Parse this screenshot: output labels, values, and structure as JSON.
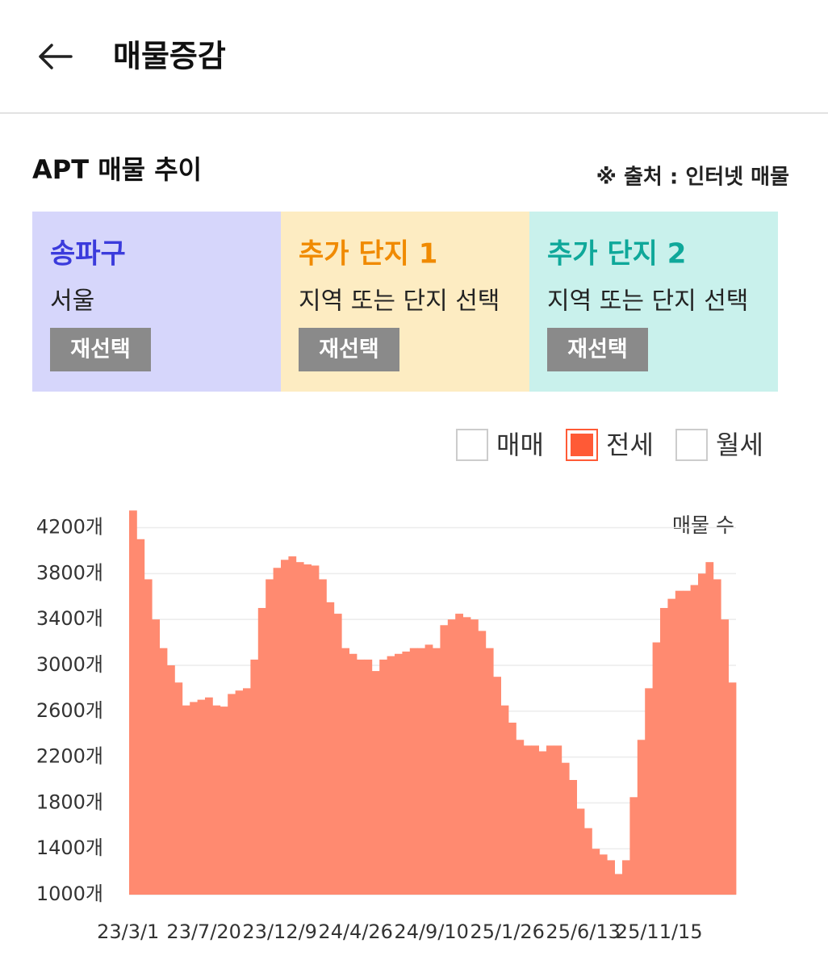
{
  "header": {
    "title": "매물증감"
  },
  "section": {
    "title": "APT 매물 추이",
    "source": "※ 출처 : 인터넷 매물"
  },
  "cards": [
    {
      "title": "송파구",
      "subtitle": "서울",
      "button": "재선택",
      "color": "#d6d6fb",
      "title_color": "#3b3bdc"
    },
    {
      "title": "추가 단지 1",
      "subtitle": "지역 또는 단지 선택",
      "button": "재선택",
      "color": "#fdecc2",
      "title_color": "#f08a00"
    },
    {
      "title": "추가 단지 2",
      "subtitle": "지역 또는 단지 선택",
      "button": "재선택",
      "color": "#c9f1ec",
      "title_color": "#0fa89a"
    }
  ],
  "legend": [
    {
      "label": "매매",
      "checked": false
    },
    {
      "label": "전세",
      "checked": true
    },
    {
      "label": "월세",
      "checked": false
    }
  ],
  "chart_data": {
    "type": "bar",
    "y_label": "매물 수",
    "categories": [
      "23/3/1",
      null,
      null,
      null,
      null,
      null,
      null,
      null,
      null,
      null,
      "23/7/20",
      null,
      null,
      null,
      null,
      null,
      null,
      null,
      null,
      null,
      "23/12/9",
      null,
      null,
      null,
      null,
      null,
      null,
      null,
      null,
      null,
      "24/4/26",
      null,
      null,
      null,
      null,
      null,
      null,
      null,
      null,
      null,
      "24/9/10",
      null,
      null,
      null,
      null,
      null,
      null,
      null,
      null,
      null,
      "25/1/26",
      null,
      null,
      null,
      null,
      null,
      null,
      null,
      null,
      null,
      "25/6/13",
      null,
      null,
      null,
      null,
      null,
      null,
      null,
      null,
      null,
      "25/11/15",
      null,
      null,
      null,
      null,
      null,
      null,
      null,
      null,
      null
    ],
    "series": [
      {
        "color": "#ff8a70",
        "values": [
          4350,
          4100,
          3750,
          3400,
          3150,
          3000,
          2850,
          2650,
          2680,
          2700,
          2720,
          2650,
          2640,
          2750,
          2780,
          2800,
          3050,
          3500,
          3750,
          3850,
          3920,
          3950,
          3900,
          3880,
          3870,
          3750,
          3550,
          3450,
          3150,
          3100,
          3050,
          3050,
          2950,
          3050,
          3080,
          3100,
          3120,
          3150,
          3150,
          3180,
          3150,
          3350,
          3400,
          3450,
          3420,
          3400,
          3300,
          3150,
          2900,
          2650,
          2500,
          2350,
          2300,
          2300,
          2250,
          2300,
          2300,
          2150,
          2000,
          1750,
          1580,
          1400,
          1350,
          1300,
          1180,
          1300,
          1850,
          2350,
          2800,
          3200,
          3500,
          3580,
          3650,
          3650,
          3700,
          3800,
          3900,
          3750,
          3400,
          2850
        ]
      }
    ],
    "ylim": [
      1000,
      4380
    ],
    "yticks": [
      {
        "value": 1000,
        "label": "1000개"
      },
      {
        "value": 1400,
        "label": "1400개"
      },
      {
        "value": 1800,
        "label": "1800개"
      },
      {
        "value": 2200,
        "label": "2200개"
      },
      {
        "value": 2600,
        "label": "2600개"
      },
      {
        "value": 3000,
        "label": "3000개"
      },
      {
        "value": 3400,
        "label": "3400개"
      },
      {
        "value": 3800,
        "label": "3800개"
      },
      {
        "value": 4200,
        "label": "4200개"
      }
    ],
    "grid": true
  }
}
